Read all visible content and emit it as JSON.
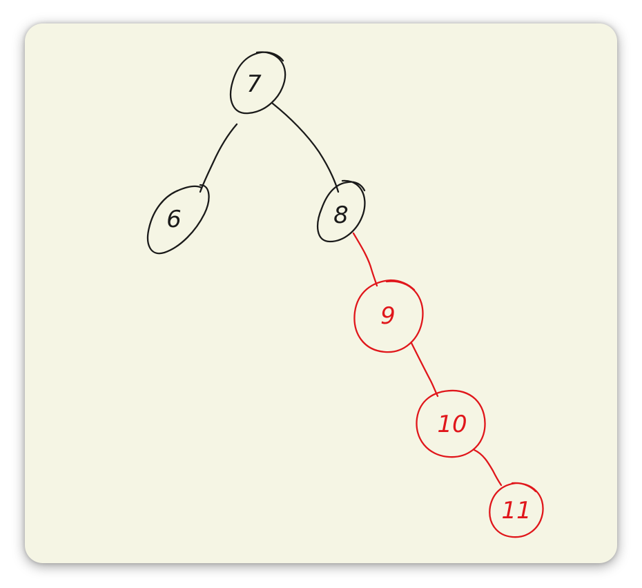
{
  "diagram": {
    "type": "binary-tree-sketch",
    "colors": {
      "background": "#f5f5e4",
      "black_ink": "#1a1a1a",
      "red_ink": "#e0161b"
    },
    "nodes": [
      {
        "id": "n7",
        "label": "7",
        "color": "black"
      },
      {
        "id": "n6",
        "label": "6",
        "color": "black"
      },
      {
        "id": "n8",
        "label": "8",
        "color": "black"
      },
      {
        "id": "n9",
        "label": "9",
        "color": "red"
      },
      {
        "id": "n10",
        "label": "10",
        "color": "red"
      },
      {
        "id": "n11",
        "label": "11",
        "color": "red"
      }
    ],
    "edges": [
      {
        "from": "n7",
        "to": "n6",
        "color": "black"
      },
      {
        "from": "n7",
        "to": "n8",
        "color": "black"
      },
      {
        "from": "n8",
        "to": "n9",
        "color": "red"
      },
      {
        "from": "n9",
        "to": "n10",
        "color": "red"
      },
      {
        "from": "n10",
        "to": "n11",
        "color": "red"
      }
    ]
  }
}
